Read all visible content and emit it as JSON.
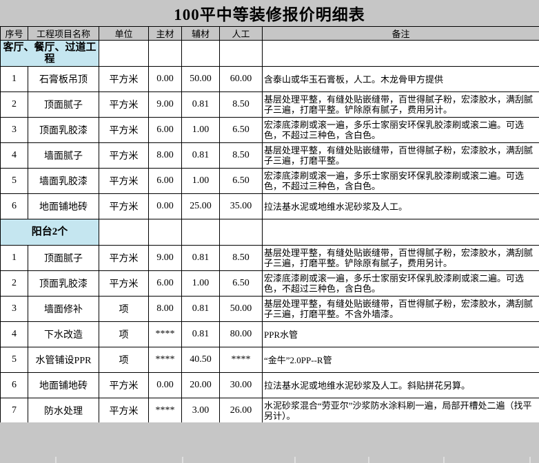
{
  "title": "100平中等装修报价明细表",
  "colors": {
    "page_bg": "#c6c6c6",
    "header_bg": "#c6c6c6",
    "section_bg": "#c5e6f0",
    "table_bg": "#ffffff",
    "border": "#000000"
  },
  "table": {
    "headers": [
      "序号",
      "工程项目名称",
      "单位",
      "主材",
      "辅材",
      "人工",
      "备注"
    ],
    "sections": [
      {
        "name": "客厅、餐厅、过道工程",
        "rows": [
          {
            "no": "1",
            "item": "石膏板吊顶",
            "unit": "平方米",
            "main": "0.00",
            "aux": "50.00",
            "labor": "60.00",
            "note": "含泰山或华玉石膏板，人工。木龙骨甲方提供"
          },
          {
            "no": "2",
            "item": "顶面腻子",
            "unit": "平方米",
            "main": "9.00",
            "aux": "0.81",
            "labor": "8.50",
            "note": "基层处理平整，有缝处贴嵌缝带，百世得腻子粉，宏漆胶水，满刮腻子三遍，打磨平整。铲除原有腻子，费用另计。"
          },
          {
            "no": "3",
            "item": "顶面乳胶漆",
            "unit": "平方米",
            "main": "6.00",
            "aux": "1.00",
            "labor": "6.50",
            "note": "宏漆底漆刷或滚一遍，多乐士家丽安环保乳胶漆刷或滚二遍。可选色，不超过三种色，含白色。"
          },
          {
            "no": "4",
            "item": "墙面腻子",
            "unit": "平方米",
            "main": "8.00",
            "aux": "0.81",
            "labor": "8.50",
            "note": "基层处理平整，有缝处贴嵌缝带，百世得腻子粉，宏漆胶水，满刮腻子三遍，打磨平整。"
          },
          {
            "no": "5",
            "item": "墙面乳胶漆",
            "unit": "平方米",
            "main": "6.00",
            "aux": "1.00",
            "labor": "6.50",
            "note": "宏漆底漆刷或滚一遍，多乐士家丽安环保乳胶漆刷或滚二遍。可选色，不超过三种色，含白色。"
          },
          {
            "no": "6",
            "item": "地面铺地砖",
            "unit": "平方米",
            "main": "0.00",
            "aux": "25.00",
            "labor": "35.00",
            "note": "拉法基水泥或地维水泥砂浆及人工。"
          }
        ]
      },
      {
        "name": "阳台2个",
        "rows": [
          {
            "no": "1",
            "item": "顶面腻子",
            "unit": "平方米",
            "main": "9.00",
            "aux": "0.81",
            "labor": "8.50",
            "note": "基层处理平整，有缝处贴嵌缝带，百世得腻子粉，宏漆胶水，满刮腻子三遍，打磨平整。铲除原有腻子，费用另计。"
          },
          {
            "no": "2",
            "item": "顶面乳胶漆",
            "unit": "平方米",
            "main": "6.00",
            "aux": "1.00",
            "labor": "6.50",
            "note": "宏漆底漆刷或滚一遍，多乐士家丽安环保乳胶漆刷或滚二遍。可选色，不超过三种色，含白色。"
          },
          {
            "no": "3",
            "item": "墙面修补",
            "unit": "项",
            "main": "8.00",
            "aux": "0.81",
            "labor": "50.00",
            "note": "基层处理平整，有缝处贴嵌缝带，百世得腻子粉，宏漆胶水，满刮腻子三遍，打磨平整。不含外墙漆。"
          },
          {
            "no": "4",
            "item": "下水改造",
            "unit": "项",
            "main": "****",
            "aux": "0.81",
            "labor": "80.00",
            "note": "PPR水管"
          },
          {
            "no": "5",
            "item": "水管铺设PPR",
            "unit": "项",
            "main": "****",
            "aux": "40.50",
            "labor": "****",
            "note": "“金牛”2.0PP--R管"
          },
          {
            "no": "6",
            "item": "地面铺地砖",
            "unit": "平方米",
            "main": "0.00",
            "aux": "20.00",
            "labor": "30.00",
            "note": "拉法基水泥或地维水泥砂浆及人工。斜贴拼花另算。"
          },
          {
            "no": "7",
            "item": "防水处理",
            "unit": "平方米",
            "main": "****",
            "aux": "3.00",
            "labor": "26.00",
            "note": "水泥砂浆混合“劳亚尔”沙浆防水涂料刷一遍，局部开槽处二遍（找平另计）。"
          }
        ]
      }
    ]
  }
}
